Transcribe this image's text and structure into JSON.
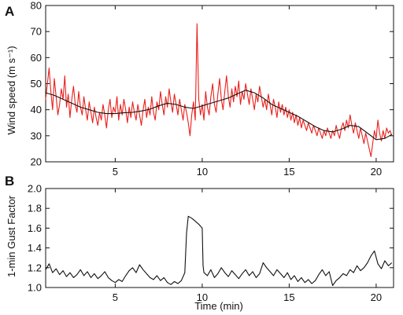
{
  "chart_data": [
    {
      "panel": "A",
      "type": "line",
      "title": "",
      "xlabel": "",
      "ylabel": "Wind speed (m s⁻¹)",
      "xlim": [
        1,
        21
      ],
      "ylim": [
        20,
        80
      ],
      "xticks": [
        5,
        10,
        15,
        20
      ],
      "yticks": [
        20,
        30,
        40,
        50,
        60,
        70,
        80
      ],
      "grid": false,
      "legend": "none",
      "series": [
        {
          "color": "#e8201c",
          "x": [
            1.0,
            1.1,
            1.2,
            1.3,
            1.4,
            1.5,
            1.6,
            1.7,
            1.8,
            1.9,
            2.0,
            2.1,
            2.2,
            2.3,
            2.4,
            2.5,
            2.6,
            2.7,
            2.8,
            2.9,
            3.0,
            3.1,
            3.2,
            3.3,
            3.4,
            3.5,
            3.6,
            3.7,
            3.8,
            3.9,
            4.0,
            4.1,
            4.2,
            4.3,
            4.4,
            4.5,
            4.6,
            4.7,
            4.8,
            4.9,
            5.0,
            5.1,
            5.2,
            5.3,
            5.4,
            5.5,
            5.6,
            5.7,
            5.8,
            5.9,
            6.0,
            6.1,
            6.2,
            6.3,
            6.4,
            6.5,
            6.6,
            6.7,
            6.8,
            6.9,
            7.0,
            7.1,
            7.2,
            7.3,
            7.4,
            7.5,
            7.6,
            7.7,
            7.8,
            7.9,
            8.0,
            8.1,
            8.2,
            8.3,
            8.4,
            8.5,
            8.6,
            8.7,
            8.8,
            8.9,
            9.0,
            9.1,
            9.2,
            9.3,
            9.4,
            9.5,
            9.6,
            9.7,
            9.8,
            9.9,
            10.0,
            10.1,
            10.2,
            10.3,
            10.4,
            10.5,
            10.6,
            10.7,
            10.8,
            10.9,
            11.0,
            11.1,
            11.2,
            11.3,
            11.4,
            11.5,
            11.6,
            11.7,
            11.8,
            11.9,
            12.0,
            12.1,
            12.2,
            12.3,
            12.4,
            12.5,
            12.6,
            12.7,
            12.8,
            12.9,
            13.0,
            13.1,
            13.2,
            13.3,
            13.4,
            13.5,
            13.6,
            13.7,
            13.8,
            13.9,
            14.0,
            14.1,
            14.2,
            14.3,
            14.4,
            14.5,
            14.6,
            14.7,
            14.8,
            14.9,
            15.0,
            15.1,
            15.2,
            15.3,
            15.4,
            15.5,
            15.6,
            15.7,
            15.8,
            15.9,
            16.0,
            16.1,
            16.2,
            16.3,
            16.4,
            16.5,
            16.6,
            16.7,
            16.8,
            16.9,
            17.0,
            17.1,
            17.2,
            17.3,
            17.4,
            17.5,
            17.6,
            17.7,
            17.8,
            17.9,
            18.0,
            18.1,
            18.2,
            18.3,
            18.4,
            18.5,
            18.6,
            18.7,
            18.8,
            18.9,
            19.0,
            19.1,
            19.2,
            19.3,
            19.4,
            19.5,
            19.6,
            19.7,
            19.8,
            19.9,
            20.0,
            20.1,
            20.2,
            20.3,
            20.4,
            20.5,
            20.6,
            20.7,
            20.8,
            20.9
          ],
          "values": [
            44,
            50,
            56,
            47,
            40,
            52,
            45,
            38,
            42,
            48,
            44,
            53,
            41,
            46,
            37,
            44,
            49,
            42,
            39,
            47,
            41,
            38,
            45,
            40,
            36,
            43,
            39,
            35,
            41,
            37,
            34,
            39,
            36,
            42,
            38,
            33,
            40,
            44,
            37,
            41,
            39,
            45,
            36,
            42,
            38,
            44,
            40,
            35,
            41,
            37,
            43,
            39,
            36,
            42,
            38,
            34,
            40,
            44,
            37,
            41,
            38,
            45,
            39,
            36,
            43,
            40,
            47,
            42,
            38,
            45,
            41,
            48,
            43,
            39,
            46,
            42,
            38,
            44,
            40,
            36,
            42,
            39,
            35,
            30,
            38,
            43,
            36,
            73,
            44,
            38,
            42,
            36,
            47,
            41,
            38,
            45,
            50,
            42,
            39,
            46,
            52,
            44,
            40,
            47,
            53,
            45,
            41,
            48,
            43,
            49,
            45,
            51,
            42,
            47,
            44,
            50,
            46,
            42,
            48,
            44,
            40,
            46,
            43,
            49,
            45,
            41,
            44,
            40,
            46,
            42,
            38,
            44,
            41,
            37,
            43,
            39,
            42,
            38,
            41,
            37,
            40,
            36,
            39,
            35,
            38,
            34,
            37,
            33,
            36,
            34,
            32,
            35,
            33,
            31,
            34,
            32,
            30,
            33,
            31,
            29,
            32,
            30,
            33,
            31,
            29,
            32,
            30,
            34,
            31,
            29,
            33,
            35,
            32,
            36,
            33,
            38,
            34,
            31,
            35,
            32,
            29,
            33,
            30,
            27,
            31,
            28,
            25,
            22,
            27,
            32,
            29,
            36,
            31,
            28,
            32,
            29,
            33,
            31,
            32,
            30
          ],
          "stroke_width": 1.1
        },
        {
          "color": "#111111",
          "x": [
            1.0,
            1.5,
            2.0,
            2.5,
            3.0,
            3.5,
            4.0,
            4.5,
            5.0,
            5.5,
            6.0,
            6.5,
            7.0,
            7.5,
            8.0,
            8.5,
            9.0,
            9.5,
            10.0,
            10.5,
            11.0,
            11.5,
            12.0,
            12.5,
            13.0,
            13.5,
            14.0,
            14.5,
            15.0,
            15.5,
            16.0,
            16.5,
            17.0,
            17.5,
            18.0,
            18.5,
            19.0,
            19.5,
            20.0,
            20.5,
            20.9
          ],
          "values": [
            46.5,
            45.5,
            44.0,
            42.5,
            41.0,
            40.0,
            39.0,
            38.5,
            38.5,
            38.8,
            39.0,
            39.5,
            40.2,
            41.5,
            42.5,
            42.0,
            41.0,
            40.5,
            41.5,
            42.5,
            43.5,
            44.5,
            46.0,
            47.5,
            46.5,
            44.5,
            42.0,
            40.5,
            39.0,
            37.5,
            35.5,
            33.5,
            32.0,
            31.5,
            32.5,
            34.0,
            33.5,
            31.0,
            28.5,
            29.0,
            30.5
          ],
          "stroke_width": 1.1
        }
      ]
    },
    {
      "panel": "B",
      "type": "line",
      "title": "",
      "xlabel": "Time (min)",
      "ylabel": "1-min Gust Factor",
      "xlim": [
        1,
        21
      ],
      "ylim": [
        1.0,
        2.0
      ],
      "xticks": [
        5,
        10,
        15,
        20
      ],
      "yticks": [
        1.0,
        1.2,
        1.4,
        1.6,
        1.8,
        2.0
      ],
      "ytick_labels": [
        "1.0",
        "1.2",
        "1.4",
        "1.6",
        "1.8",
        "2.0"
      ],
      "grid": false,
      "legend": "none",
      "series": [
        {
          "color": "#111111",
          "x": [
            1.0,
            1.2,
            1.4,
            1.6,
            1.8,
            2.0,
            2.2,
            2.4,
            2.6,
            2.8,
            3.0,
            3.2,
            3.4,
            3.6,
            3.8,
            4.0,
            4.2,
            4.4,
            4.6,
            4.8,
            5.0,
            5.2,
            5.4,
            5.6,
            5.8,
            6.0,
            6.2,
            6.4,
            6.6,
            6.8,
            7.0,
            7.2,
            7.4,
            7.6,
            7.8,
            8.0,
            8.2,
            8.4,
            8.6,
            8.8,
            9.0,
            9.1,
            9.2,
            9.4,
            9.6,
            9.8,
            10.0,
            10.05,
            10.1,
            10.3,
            10.5,
            10.7,
            10.9,
            11.1,
            11.3,
            11.5,
            11.7,
            11.9,
            12.1,
            12.3,
            12.5,
            12.7,
            12.9,
            13.1,
            13.3,
            13.5,
            13.7,
            13.9,
            14.1,
            14.3,
            14.5,
            14.7,
            14.9,
            15.1,
            15.3,
            15.5,
            15.7,
            15.9,
            16.1,
            16.3,
            16.5,
            16.7,
            16.9,
            17.1,
            17.3,
            17.5,
            17.7,
            17.9,
            18.1,
            18.3,
            18.5,
            18.7,
            18.9,
            19.1,
            19.3,
            19.5,
            19.7,
            19.9,
            20.1,
            20.3,
            20.5,
            20.7,
            20.9
          ],
          "values": [
            1.18,
            1.24,
            1.15,
            1.19,
            1.13,
            1.17,
            1.11,
            1.15,
            1.1,
            1.13,
            1.18,
            1.12,
            1.16,
            1.1,
            1.14,
            1.09,
            1.12,
            1.16,
            1.1,
            1.07,
            1.05,
            1.08,
            1.06,
            1.12,
            1.17,
            1.2,
            1.15,
            1.23,
            1.18,
            1.14,
            1.1,
            1.08,
            1.12,
            1.07,
            1.1,
            1.05,
            1.03,
            1.06,
            1.04,
            1.07,
            1.15,
            1.55,
            1.72,
            1.7,
            1.67,
            1.64,
            1.6,
            1.22,
            1.15,
            1.12,
            1.18,
            1.1,
            1.14,
            1.2,
            1.15,
            1.11,
            1.17,
            1.13,
            1.09,
            1.14,
            1.18,
            1.12,
            1.16,
            1.1,
            1.14,
            1.25,
            1.2,
            1.16,
            1.12,
            1.18,
            1.14,
            1.1,
            1.15,
            1.08,
            1.12,
            1.06,
            1.1,
            1.05,
            1.08,
            1.04,
            1.07,
            1.13,
            1.18,
            1.12,
            1.16,
            1.02,
            1.07,
            1.1,
            1.14,
            1.12,
            1.18,
            1.15,
            1.22,
            1.17,
            1.2,
            1.25,
            1.32,
            1.37,
            1.24,
            1.19,
            1.27,
            1.22,
            1.25
          ],
          "stroke_width": 1.1
        }
      ]
    }
  ]
}
